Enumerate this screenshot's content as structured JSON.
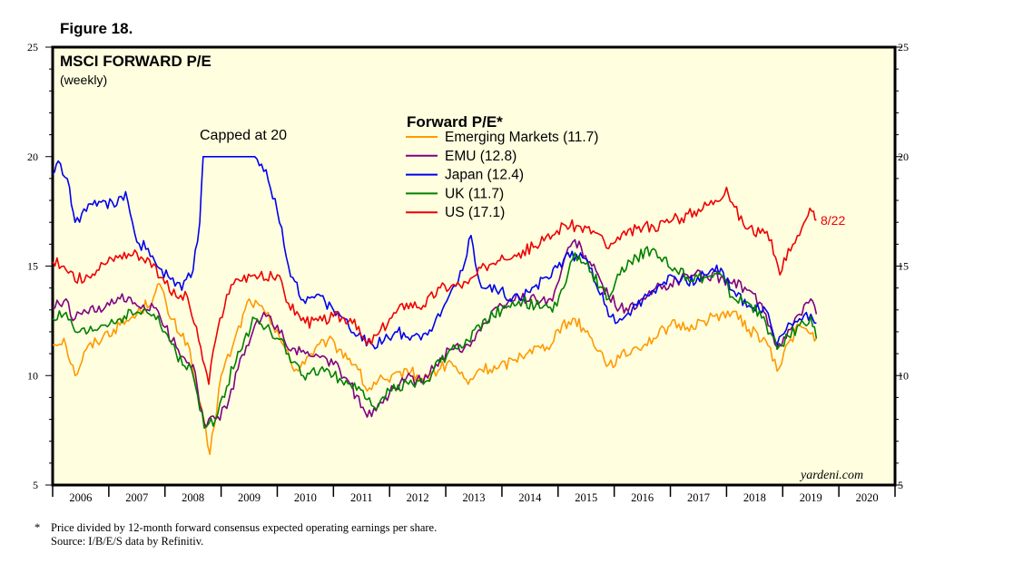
{
  "figure_label": "Figure 18.",
  "footnote": {
    "marker": "*",
    "text": "Price divided by 12-month forward consensus expected operating earnings per share.",
    "source": "Source: I/B/E/S data by Refinitiv."
  },
  "chart_data": {
    "type": "line",
    "title": "MSCI FORWARD P/E",
    "subtitle": "(weekly)",
    "legend_title": "Forward P/E*",
    "annotation": "Capped at 20",
    "end_label": "8/22",
    "watermark": "yardeni.com",
    "ylim": [
      5,
      25
    ],
    "yticks": [
      "5",
      "10",
      "15",
      "20",
      "25"
    ],
    "xlim": [
      2006.0,
      2021.0
    ],
    "xlabels": [
      "2006",
      "2007",
      "2008",
      "2009",
      "2010",
      "2011",
      "2012",
      "2013",
      "2014",
      "2015",
      "2016",
      "2017",
      "2018",
      "2019",
      "2020"
    ],
    "colors": {
      "plot_bg": "#ffffe0",
      "emerging": "#ff9900",
      "emu": "#800080",
      "japan": "#0000ee",
      "uk": "#008000",
      "us": "#ee0000"
    },
    "series": [
      {
        "name": "Emerging Markets (11.7)",
        "color": "#ff9900",
        "x": [
          2006.0,
          2006.2,
          2006.4,
          2006.6,
          2006.9,
          2007.2,
          2007.5,
          2007.8,
          2007.9,
          2008.1,
          2008.4,
          2008.6,
          2008.8,
          2009.0,
          2009.2,
          2009.5,
          2009.8,
          2010.0,
          2010.3,
          2010.6,
          2010.9,
          2011.1,
          2011.4,
          2011.6,
          2011.8,
          2012.0,
          2012.3,
          2012.6,
          2012.9,
          2013.1,
          2013.4,
          2013.6,
          2013.9,
          2014.2,
          2014.5,
          2014.8,
          2015.0,
          2015.3,
          2015.6,
          2015.9,
          2016.1,
          2016.4,
          2016.7,
          2017.0,
          2017.3,
          2017.6,
          2017.9,
          2018.1,
          2018.4,
          2018.7,
          2018.9,
          2019.1,
          2019.3,
          2019.5,
          2019.6
        ],
        "y": [
          11.4,
          11.7,
          10.0,
          11.2,
          11.8,
          12.3,
          12.8,
          13.6,
          14.2,
          12.6,
          11.5,
          8.9,
          6.4,
          10.0,
          11.3,
          13.5,
          12.8,
          12.1,
          10.2,
          11.0,
          11.6,
          11.2,
          10.5,
          9.3,
          9.8,
          9.7,
          10.3,
          9.8,
          10.3,
          10.6,
          9.6,
          10.3,
          10.3,
          10.7,
          11.2,
          11.3,
          12.1,
          12.6,
          11.7,
          10.5,
          10.8,
          11.3,
          11.7,
          12.3,
          12.2,
          12.5,
          12.8,
          12.9,
          12.1,
          11.6,
          10.2,
          11.5,
          12.3,
          11.9,
          11.7
        ]
      },
      {
        "name": "EMU (12.8)",
        "color": "#800080",
        "x": [
          2006.0,
          2006.2,
          2006.4,
          2006.6,
          2006.9,
          2007.2,
          2007.5,
          2007.8,
          2008.0,
          2008.2,
          2008.5,
          2008.7,
          2008.9,
          2009.1,
          2009.3,
          2009.6,
          2009.8,
          2010.0,
          2010.2,
          2010.5,
          2010.8,
          2011.0,
          2011.3,
          2011.6,
          2011.8,
          2012.0,
          2012.3,
          2012.6,
          2012.9,
          2013.1,
          2013.4,
          2013.7,
          2014.0,
          2014.3,
          2014.6,
          2014.9,
          2015.1,
          2015.3,
          2015.6,
          2015.9,
          2016.1,
          2016.4,
          2016.7,
          2017.0,
          2017.3,
          2017.6,
          2017.9,
          2018.1,
          2018.4,
          2018.7,
          2018.9,
          2019.1,
          2019.3,
          2019.5,
          2019.6
        ],
        "y": [
          13.1,
          13.4,
          12.6,
          12.9,
          13.0,
          13.5,
          13.2,
          13.1,
          12.2,
          11.3,
          10.5,
          7.8,
          8.0,
          8.5,
          10.3,
          12.3,
          12.7,
          12.3,
          11.2,
          11.0,
          10.9,
          10.5,
          9.6,
          8.1,
          8.7,
          9.2,
          9.9,
          9.7,
          10.8,
          11.2,
          11.4,
          12.4,
          13.2,
          13.6,
          13.5,
          13.4,
          15.2,
          16.2,
          15.0,
          13.6,
          13.1,
          13.1,
          13.9,
          14.2,
          14.6,
          14.6,
          14.5,
          14.2,
          13.9,
          12.8,
          11.3,
          12.1,
          12.8,
          13.5,
          12.8
        ]
      },
      {
        "name": "Japan (12.4)",
        "color": "#0000ee",
        "x": [
          2006.0,
          2006.1,
          2006.3,
          2006.4,
          2006.6,
          2006.9,
          2007.1,
          2007.3,
          2007.5,
          2007.7,
          2007.9,
          2008.1,
          2008.3,
          2008.5,
          2008.62,
          2008.68,
          2008.76,
          2009.0,
          2009.2,
          2009.4,
          2009.6,
          2009.8,
          2010.0,
          2010.2,
          2010.5,
          2010.7,
          2011.0,
          2011.2,
          2011.4,
          2011.7,
          2011.9,
          2012.1,
          2012.4,
          2012.6,
          2012.9,
          2013.1,
          2013.3,
          2013.45,
          2013.6,
          2013.9,
          2014.2,
          2014.5,
          2014.8,
          2015.1,
          2015.4,
          2015.6,
          2015.9,
          2016.1,
          2016.4,
          2016.7,
          2017.0,
          2017.3,
          2017.6,
          2017.9,
          2018.1,
          2018.4,
          2018.7,
          2018.9,
          2019.1,
          2019.3,
          2019.5,
          2019.6
        ],
        "y": [
          19.2,
          19.8,
          18.6,
          17.0,
          17.5,
          18.0,
          17.7,
          18.4,
          16.1,
          15.8,
          14.9,
          14.4,
          13.9,
          14.8,
          17.0,
          20.0,
          20.0,
          20.0,
          20.0,
          20.0,
          20.0,
          19.4,
          17.5,
          15.0,
          13.3,
          13.7,
          13.0,
          12.6,
          11.8,
          11.4,
          11.6,
          12.0,
          11.8,
          11.9,
          12.7,
          13.9,
          14.8,
          16.4,
          14.3,
          13.9,
          13.6,
          13.8,
          14.5,
          15.3,
          15.6,
          14.9,
          12.7,
          12.6,
          13.2,
          13.9,
          14.6,
          14.2,
          14.6,
          14.9,
          13.9,
          13.2,
          13.0,
          11.4,
          12.4,
          12.6,
          12.8,
          12.4
        ]
      },
      {
        "name": "UK (11.7)",
        "color": "#008000",
        "x": [
          2006.0,
          2006.2,
          2006.4,
          2006.6,
          2006.9,
          2007.2,
          2007.5,
          2007.8,
          2008.0,
          2008.2,
          2008.5,
          2008.7,
          2008.9,
          2009.1,
          2009.3,
          2009.6,
          2009.8,
          2010.0,
          2010.2,
          2010.5,
          2010.8,
          2011.0,
          2011.3,
          2011.6,
          2011.8,
          2012.0,
          2012.3,
          2012.6,
          2012.9,
          2013.1,
          2013.4,
          2013.7,
          2014.0,
          2014.3,
          2014.6,
          2014.9,
          2015.1,
          2015.3,
          2015.6,
          2015.9,
          2016.1,
          2016.4,
          2016.7,
          2017.0,
          2017.3,
          2017.6,
          2017.9,
          2018.1,
          2018.4,
          2018.7,
          2018.9,
          2019.1,
          2019.3,
          2019.5,
          2019.6
        ],
        "y": [
          12.6,
          12.8,
          12.0,
          11.9,
          12.3,
          12.6,
          12.9,
          12.8,
          12.0,
          11.0,
          10.0,
          7.6,
          8.0,
          9.5,
          11.1,
          12.6,
          12.2,
          11.7,
          11.0,
          9.8,
          10.4,
          10.0,
          9.6,
          8.9,
          8.6,
          9.3,
          9.7,
          9.6,
          10.6,
          11.2,
          11.6,
          12.6,
          13.0,
          13.4,
          13.2,
          12.9,
          14.0,
          15.6,
          14.7,
          13.5,
          14.6,
          15.4,
          15.8,
          14.9,
          14.5,
          14.5,
          14.6,
          13.6,
          13.3,
          12.4,
          11.2,
          11.8,
          12.3,
          12.7,
          11.7
        ]
      },
      {
        "name": "US (17.1)",
        "color": "#ee0000",
        "x": [
          2006.0,
          2006.2,
          2006.4,
          2006.6,
          2006.9,
          2007.2,
          2007.5,
          2007.8,
          2008.0,
          2008.2,
          2008.4,
          2008.6,
          2008.78,
          2008.9,
          2009.1,
          2009.3,
          2009.6,
          2009.8,
          2010.0,
          2010.2,
          2010.5,
          2010.8,
          2011.0,
          2011.3,
          2011.6,
          2011.8,
          2012.0,
          2012.3,
          2012.6,
          2012.9,
          2013.1,
          2013.4,
          2013.7,
          2014.0,
          2014.3,
          2014.6,
          2014.9,
          2015.1,
          2015.4,
          2015.7,
          2015.9,
          2016.1,
          2016.4,
          2016.7,
          2016.9,
          2017.2,
          2017.5,
          2017.8,
          2018.0,
          2018.1,
          2018.3,
          2018.6,
          2018.8,
          2018.95,
          2019.1,
          2019.3,
          2019.45,
          2019.55,
          2019.6
        ],
        "y": [
          15.2,
          15.0,
          14.3,
          14.6,
          15.1,
          15.5,
          15.6,
          15.1,
          14.2,
          13.6,
          13.6,
          11.6,
          9.6,
          11.6,
          13.7,
          14.4,
          14.6,
          14.4,
          14.6,
          13.3,
          12.4,
          12.5,
          12.7,
          12.6,
          11.4,
          11.9,
          12.6,
          13.3,
          13.2,
          14.0,
          14.1,
          14.2,
          15.0,
          15.5,
          15.6,
          15.9,
          16.4,
          16.9,
          16.8,
          16.5,
          15.8,
          16.2,
          16.7,
          16.8,
          17.0,
          17.2,
          17.6,
          18.0,
          18.6,
          17.9,
          16.9,
          16.5,
          16.2,
          14.6,
          15.8,
          16.4,
          17.3,
          17.5,
          17.1
        ]
      }
    ]
  }
}
